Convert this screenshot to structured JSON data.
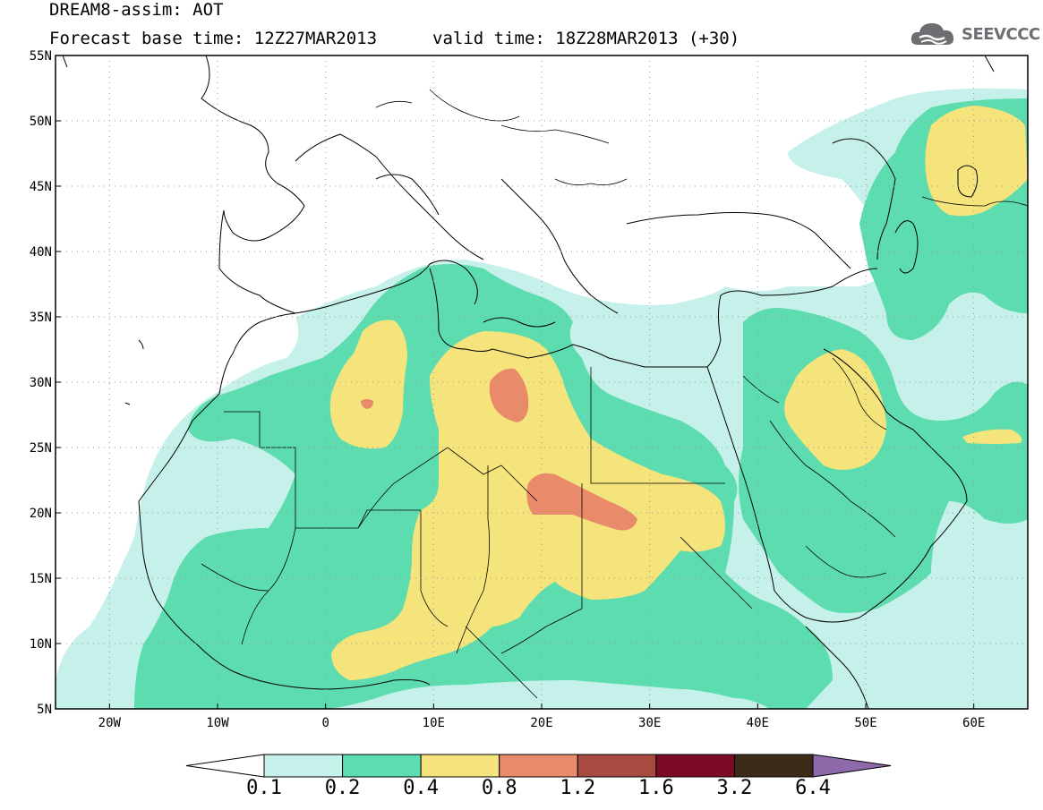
{
  "header": {
    "title_line1": "DREAM8-assim: AOT",
    "title_line2": "Forecast base time: 12Z27MAR2013",
    "valid_time": "valid time: 18Z28MAR2013 (+30)",
    "logo_text": "SEEVCCC"
  },
  "map": {
    "type": "filled-contour map",
    "projection": "lat-lon",
    "lon_range": [
      -25,
      65
    ],
    "lat_range": [
      5,
      55
    ],
    "grid": "dotted",
    "lat_ticks": [
      "55N",
      "50N",
      "45N",
      "40N",
      "35N",
      "30N",
      "25N",
      "20N",
      "15N",
      "10N",
      "5N"
    ],
    "lon_ticks": [
      "20W",
      "10W",
      "0",
      "10E",
      "20E",
      "30E",
      "40E",
      "50E",
      "60E"
    ]
  },
  "colorbar": {
    "labels": [
      "0.1",
      "0.2",
      "0.4",
      "0.8",
      "1.2",
      "1.6",
      "3.2",
      "6.4"
    ],
    "colors": [
      "#ffffff",
      "#c6f0ea",
      "#5cdcaf",
      "#f5e47c",
      "#e98b6b",
      "#a94a40",
      "#7d0b25",
      "#3d2b18",
      "#8d69a9"
    ]
  }
}
